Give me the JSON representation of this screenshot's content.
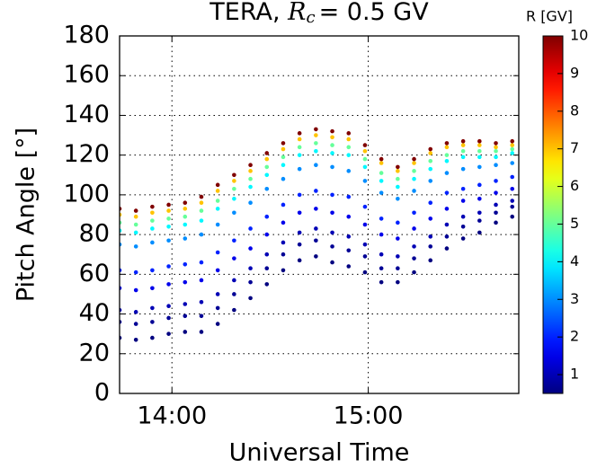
{
  "chart_data": {
    "type": "scatter",
    "title": {
      "text": "TERA, ",
      "symbol": "R",
      "subscript": "c",
      "rest": "= 0.5 GV"
    },
    "xlabel": "Universal Time",
    "ylabel": "Pitch Angle [°]",
    "xlim": [
      "13:44",
      "15:46"
    ],
    "xticks": [
      "14:00",
      "15:00"
    ],
    "ylim": [
      0,
      180
    ],
    "yticks": [
      0,
      20,
      40,
      60,
      80,
      100,
      120,
      140,
      160,
      180
    ],
    "grid": true,
    "colormap": "jet",
    "colorbar_label": "R [GV]",
    "clim": [
      0.5,
      10
    ],
    "cticks": [
      1,
      2,
      3,
      4,
      5,
      6,
      7,
      8,
      9,
      10
    ],
    "x": [
      "13:44",
      "13:49",
      "13:54",
      "13:59",
      "14:04",
      "14:09",
      "14:14",
      "14:19",
      "14:24",
      "14:29",
      "14:34",
      "14:39",
      "14:44",
      "14:49",
      "14:54",
      "14:59",
      "15:04",
      "15:09",
      "15:14",
      "15:19",
      "15:24",
      "15:29",
      "15:34",
      "15:39",
      "15:44"
    ],
    "rigidities": [
      0.5,
      0.7,
      1,
      1.5,
      2,
      3,
      4,
      5,
      7,
      10
    ],
    "pitch_angles": [
      [
        28,
        36,
        42,
        53,
        62,
        75,
        82,
        86,
        90,
        93
      ],
      [
        27,
        35,
        41,
        52,
        61,
        74,
        81,
        85,
        89,
        92
      ],
      [
        28,
        36,
        43,
        53,
        62,
        76,
        83,
        87,
        91,
        94
      ],
      [
        30,
        38,
        44,
        55,
        64,
        77,
        84,
        88,
        92,
        95
      ],
      [
        31,
        39,
        45,
        56,
        65,
        78,
        85,
        89,
        93,
        96
      ],
      [
        31,
        39,
        46,
        57,
        66,
        80,
        87,
        92,
        96,
        99
      ],
      [
        35,
        43,
        50,
        62,
        71,
        85,
        93,
        97,
        102,
        105
      ],
      [
        42,
        50,
        57,
        68,
        77,
        91,
        98,
        103,
        107,
        110
      ],
      [
        48,
        56,
        63,
        73,
        83,
        96,
        104,
        108,
        112,
        115
      ],
      [
        55,
        63,
        70,
        80,
        89,
        103,
        110,
        114,
        118,
        121
      ],
      [
        62,
        70,
        76,
        86,
        95,
        108,
        115,
        119,
        123,
        126
      ],
      [
        67,
        75,
        81,
        91,
        100,
        113,
        120,
        124,
        128,
        131
      ],
      [
        69,
        77,
        83,
        93,
        102,
        115,
        122,
        126,
        130,
        133
      ],
      [
        66,
        74,
        81,
        91,
        100,
        114,
        121,
        125,
        129,
        132
      ],
      [
        64,
        72,
        79,
        89,
        99,
        112,
        120,
        124,
        128,
        131
      ],
      [
        61,
        69,
        75,
        85,
        94,
        107,
        114,
        118,
        122,
        125
      ],
      [
        56,
        63,
        70,
        80,
        88,
        101,
        107,
        111,
        116,
        118
      ],
      [
        56,
        63,
        69,
        78,
        86,
        98,
        104,
        108,
        112,
        114
      ],
      [
        61,
        68,
        74,
        83,
        91,
        102,
        108,
        112,
        116,
        118
      ],
      [
        67,
        74,
        79,
        88,
        96,
        107,
        113,
        117,
        121,
        123
      ],
      [
        73,
        79,
        85,
        93,
        101,
        111,
        117,
        120,
        124,
        126
      ],
      [
        78,
        84,
        89,
        97,
        103,
        113,
        119,
        122,
        125,
        127
      ],
      [
        81,
        87,
        91,
        98,
        105,
        114,
        119,
        122,
        125,
        127
      ],
      [
        86,
        91,
        95,
        101,
        107,
        115,
        119,
        122,
        124,
        126
      ],
      [
        89,
        94,
        97,
        103,
        109,
        116,
        121,
        123,
        125,
        127
      ]
    ]
  }
}
